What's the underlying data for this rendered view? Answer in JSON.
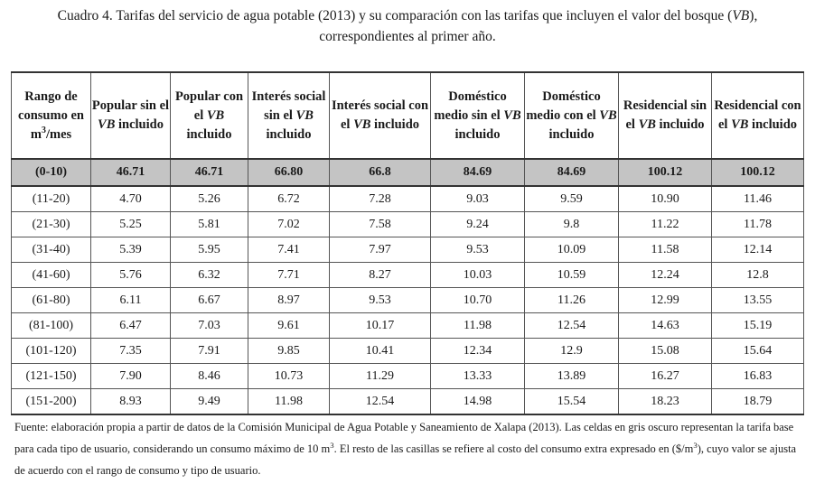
{
  "caption": {
    "line1_a": "Cuadro 4. Tarifas del servicio de agua potable (2013) y su comparación con las tarifas que incluyen el valor del bosque (",
    "line1_vb": "VB",
    "line1_b": "),",
    "line2": "correspondientes al primer año."
  },
  "table": {
    "headers": [
      {
        "pre": "Rango de consumo en m",
        "sup": "3",
        "post": "/mes",
        "vb": "",
        "tail": ""
      },
      {
        "pre": "Popular sin el ",
        "sup": "",
        "post": "",
        "vb": "VB",
        "tail": " incluido"
      },
      {
        "pre": "Popular con el ",
        "sup": "",
        "post": "",
        "vb": "VB",
        "tail": " incluido"
      },
      {
        "pre": "Interés social sin el ",
        "sup": "",
        "post": "",
        "vb": "VB",
        "tail": " incluido"
      },
      {
        "pre": "Interés social con el ",
        "sup": "",
        "post": "",
        "vb": "VB",
        "tail": " incluido"
      },
      {
        "pre": "Doméstico medio sin el ",
        "sup": "",
        "post": "",
        "vb": "VB",
        "tail": " incluido"
      },
      {
        "pre": "Doméstico medio con el ",
        "sup": "",
        "post": "",
        "vb": "VB",
        "tail": " incluido"
      },
      {
        "pre": "Residencial sin el ",
        "sup": "",
        "post": "",
        "vb": "VB",
        "tail": " incluido"
      },
      {
        "pre": "Residencial con el ",
        "sup": "",
        "post": "",
        "vb": "VB",
        "tail": " incluido"
      }
    ],
    "rows": [
      [
        "(0-10)",
        "46.71",
        "46.71",
        "66.80",
        "66.8",
        "84.69",
        "84.69",
        "100.12",
        "100.12"
      ],
      [
        "(11-20)",
        "4.70",
        "5.26",
        "6.72",
        "7.28",
        "9.03",
        "9.59",
        "10.90",
        "11.46"
      ],
      [
        "(21-30)",
        "5.25",
        "5.81",
        "7.02",
        "7.58",
        "9.24",
        "9.8",
        "11.22",
        "11.78"
      ],
      [
        "(31-40)",
        "5.39",
        "5.95",
        "7.41",
        "7.97",
        "9.53",
        "10.09",
        "11.58",
        "12.14"
      ],
      [
        "(41-60)",
        "5.76",
        "6.32",
        "7.71",
        "8.27",
        "10.03",
        "10.59",
        "12.24",
        "12.8"
      ],
      [
        "(61-80)",
        "6.11",
        "6.67",
        "8.97",
        "9.53",
        "10.70",
        "11.26",
        "12.99",
        "13.55"
      ],
      [
        "(81-100)",
        "6.47",
        "7.03",
        "9.61",
        "10.17",
        "11.98",
        "12.54",
        "14.63",
        "15.19"
      ],
      [
        "(101-120)",
        "7.35",
        "7.91",
        "9.85",
        "10.41",
        "12.34",
        "12.9",
        "15.08",
        "15.64"
      ],
      [
        "(121-150)",
        "7.90",
        "8.46",
        "10.73",
        "11.29",
        "13.33",
        "13.89",
        "16.27",
        "16.83"
      ],
      [
        "(151-200)",
        "8.93",
        "9.49",
        "11.98",
        "12.54",
        "14.98",
        "15.54",
        "18.23",
        "18.79"
      ]
    ]
  },
  "note": {
    "part1": "Fuente: elaboración propia a partir de datos de la Comisión Municipal de Agua Potable y Saneamiento de Xalapa (2013). Las celdas en gris oscuro representan la tarifa base para cada tipo de usuario, considerando un consumo máximo de 10 m",
    "sup1": "3",
    "part2": ". El resto de las casillas se refiere al costo del consumo extra expresado en ($/m",
    "sup2": "3",
    "part3": "), cuyo valor se ajusta de acuerdo con el rango de consumo y tipo de usuario."
  },
  "colors": {
    "base_row_bg": "#c4c4c4",
    "border": "#555555"
  }
}
